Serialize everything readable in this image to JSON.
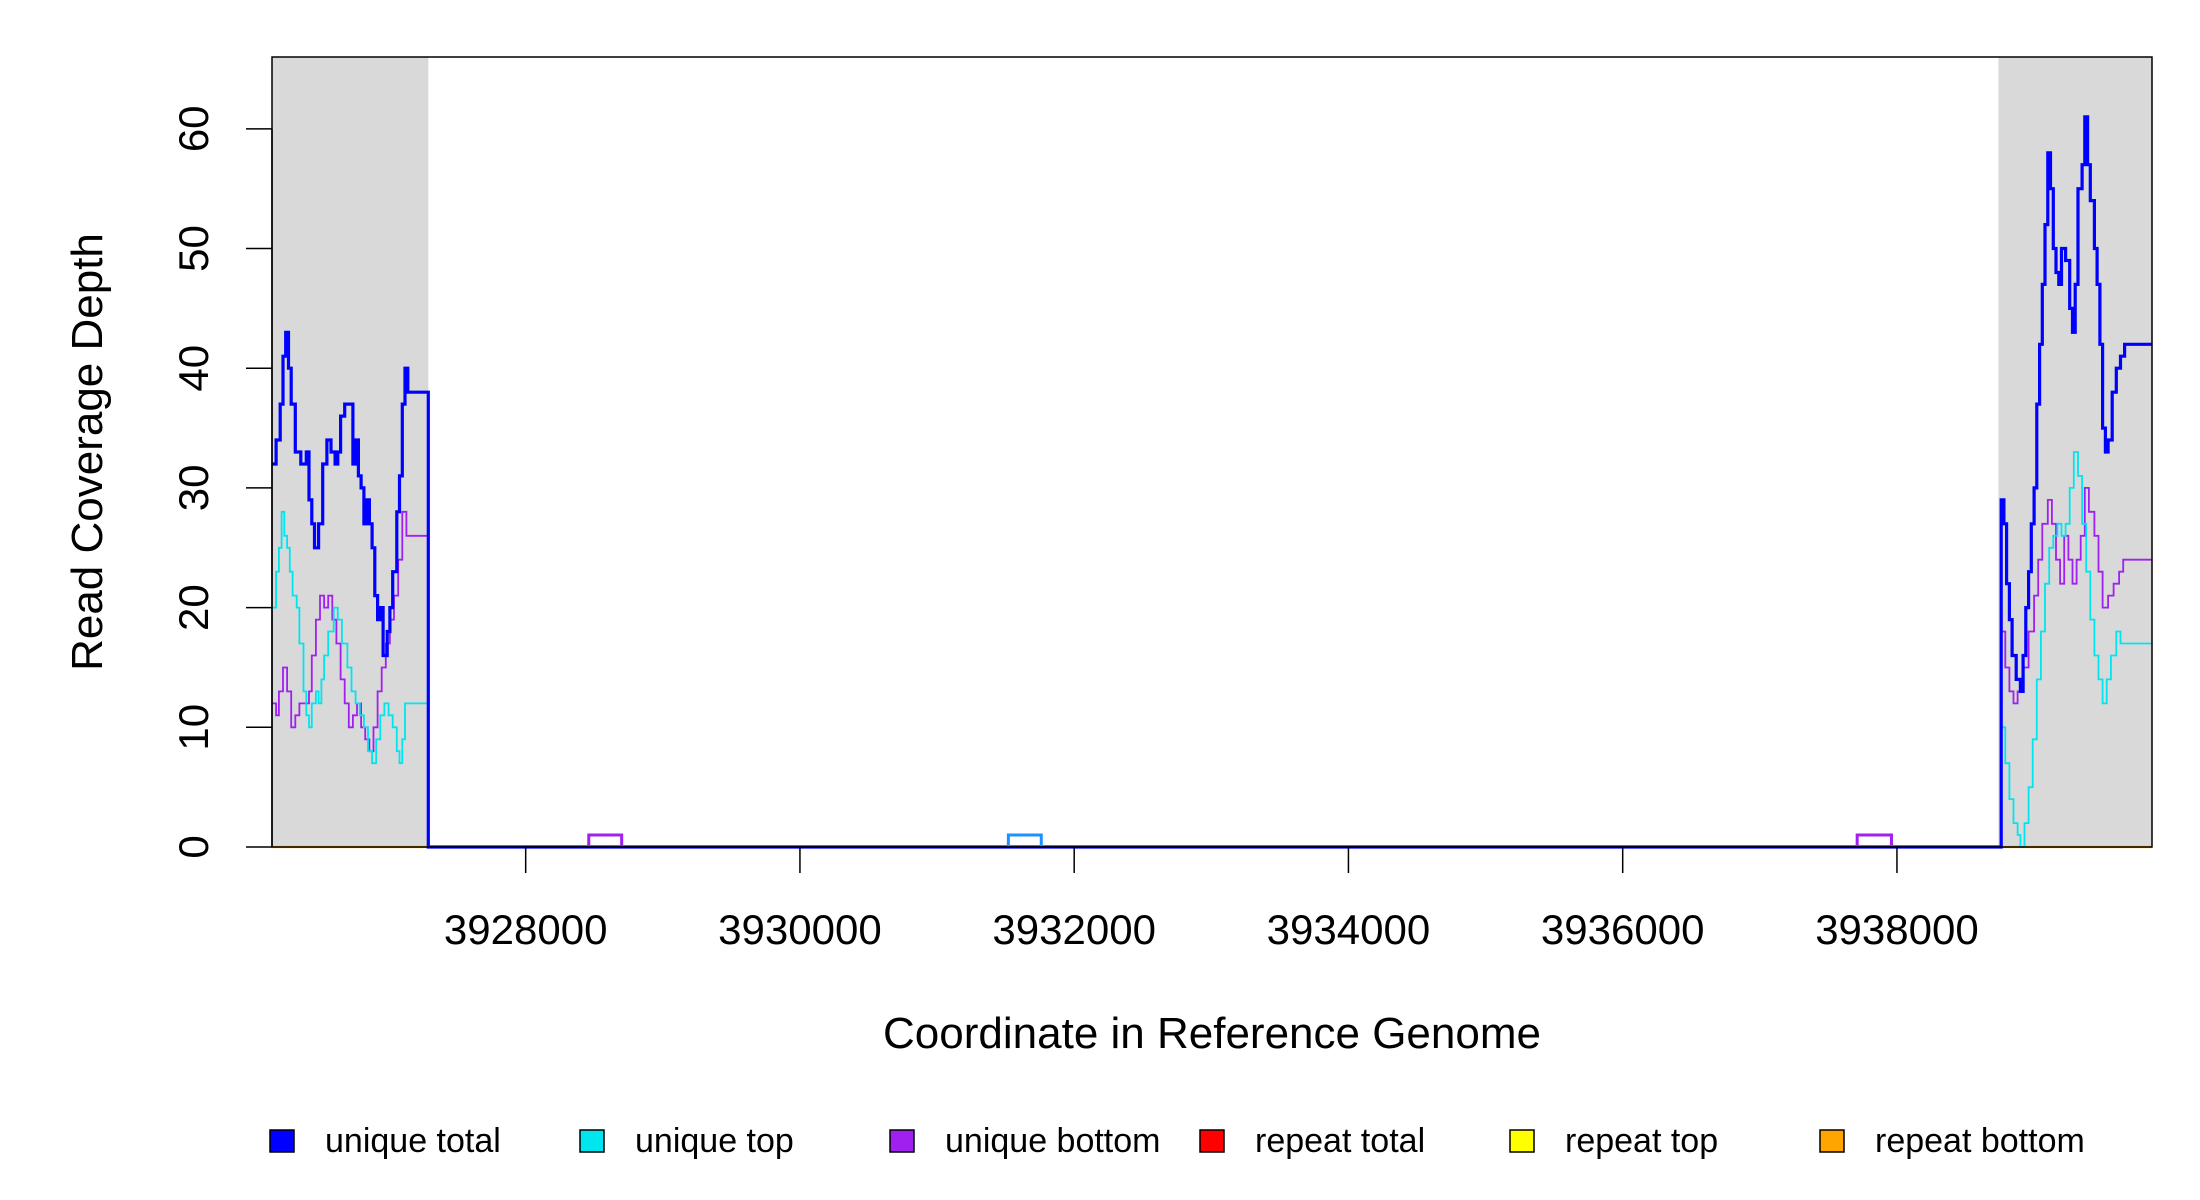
{
  "chart_data": {
    "type": "line",
    "title": "",
    "xlabel": "Coordinate in Reference Genome",
    "ylabel": "Read Coverage Depth",
    "xlim": [
      3926150,
      3939860
    ],
    "ylim": [
      0,
      66
    ],
    "x_ticks": [
      "3928000",
      "3930000",
      "3932000",
      "3934000",
      "3936000",
      "3938000"
    ],
    "y_ticks": [
      "0",
      "10",
      "20",
      "30",
      "40",
      "50",
      "60"
    ],
    "shaded_regions": [
      {
        "x0": 3926150,
        "x1": 3927290
      },
      {
        "x0": 3938740,
        "x1": 3939860
      }
    ],
    "series": [
      {
        "name": "unique total",
        "color": "#0000ff",
        "points": [
          [
            3926150,
            32
          ],
          [
            3926180,
            34
          ],
          [
            3926210,
            37
          ],
          [
            3926230,
            41
          ],
          [
            3926250,
            43
          ],
          [
            3926270,
            40
          ],
          [
            3926290,
            37
          ],
          [
            3926320,
            33
          ],
          [
            3926360,
            32
          ],
          [
            3926400,
            33
          ],
          [
            3926420,
            29
          ],
          [
            3926440,
            27
          ],
          [
            3926460,
            25
          ],
          [
            3926490,
            27
          ],
          [
            3926520,
            32
          ],
          [
            3926550,
            34
          ],
          [
            3926580,
            33
          ],
          [
            3926610,
            32
          ],
          [
            3926630,
            33
          ],
          [
            3926650,
            36
          ],
          [
            3926680,
            37
          ],
          [
            3926720,
            37
          ],
          [
            3926740,
            32
          ],
          [
            3926760,
            34
          ],
          [
            3926780,
            31
          ],
          [
            3926800,
            30
          ],
          [
            3926820,
            27
          ],
          [
            3926840,
            29
          ],
          [
            3926860,
            27
          ],
          [
            3926880,
            25
          ],
          [
            3926900,
            21
          ],
          [
            3926920,
            19
          ],
          [
            3926940,
            20
          ],
          [
            3926960,
            16
          ],
          [
            3926990,
            18
          ],
          [
            3927010,
            20
          ],
          [
            3927030,
            23
          ],
          [
            3927060,
            28
          ],
          [
            3927080,
            31
          ],
          [
            3927100,
            37
          ],
          [
            3927120,
            40
          ],
          [
            3927140,
            38
          ],
          [
            3927290,
            0
          ],
          [
            3938740,
            0
          ],
          [
            3938760,
            29
          ],
          [
            3938780,
            27
          ],
          [
            3938800,
            22
          ],
          [
            3938820,
            19
          ],
          [
            3938840,
            16
          ],
          [
            3938870,
            14
          ],
          [
            3938900,
            13
          ],
          [
            3938920,
            16
          ],
          [
            3938940,
            20
          ],
          [
            3938960,
            23
          ],
          [
            3938980,
            27
          ],
          [
            3939000,
            30
          ],
          [
            3939020,
            37
          ],
          [
            3939040,
            42
          ],
          [
            3939060,
            47
          ],
          [
            3939080,
            52
          ],
          [
            3939100,
            58
          ],
          [
            3939120,
            55
          ],
          [
            3939140,
            50
          ],
          [
            3939160,
            48
          ],
          [
            3939180,
            47
          ],
          [
            3939200,
            50
          ],
          [
            3939230,
            49
          ],
          [
            3939260,
            45
          ],
          [
            3939280,
            43
          ],
          [
            3939300,
            47
          ],
          [
            3939320,
            55
          ],
          [
            3939350,
            57
          ],
          [
            3939370,
            61
          ],
          [
            3939390,
            57
          ],
          [
            3939410,
            54
          ],
          [
            3939440,
            50
          ],
          [
            3939460,
            47
          ],
          [
            3939480,
            42
          ],
          [
            3939500,
            35
          ],
          [
            3939520,
            33
          ],
          [
            3939540,
            34
          ],
          [
            3939570,
            38
          ],
          [
            3939600,
            40
          ],
          [
            3939630,
            41
          ],
          [
            3939660,
            42
          ],
          [
            3939860,
            42
          ]
        ]
      },
      {
        "name": "unique top",
        "color": "#00e5ee",
        "points": [
          [
            3926150,
            20
          ],
          [
            3926180,
            23
          ],
          [
            3926200,
            25
          ],
          [
            3926220,
            28
          ],
          [
            3926240,
            26
          ],
          [
            3926260,
            25
          ],
          [
            3926280,
            23
          ],
          [
            3926300,
            21
          ],
          [
            3926330,
            20
          ],
          [
            3926350,
            17
          ],
          [
            3926380,
            13
          ],
          [
            3926400,
            11
          ],
          [
            3926420,
            10
          ],
          [
            3926440,
            12
          ],
          [
            3926470,
            13
          ],
          [
            3926490,
            12
          ],
          [
            3926510,
            14
          ],
          [
            3926530,
            16
          ],
          [
            3926560,
            18
          ],
          [
            3926600,
            20
          ],
          [
            3926630,
            19
          ],
          [
            3926660,
            17
          ],
          [
            3926700,
            15
          ],
          [
            3926730,
            13
          ],
          [
            3926760,
            12
          ],
          [
            3926790,
            11
          ],
          [
            3926820,
            10
          ],
          [
            3926850,
            8
          ],
          [
            3926880,
            7
          ],
          [
            3926910,
            9
          ],
          [
            3926940,
            11
          ],
          [
            3926970,
            12
          ],
          [
            3927000,
            11
          ],
          [
            3927030,
            10
          ],
          [
            3927060,
            8
          ],
          [
            3927080,
            7
          ],
          [
            3927100,
            9
          ],
          [
            3927120,
            12
          ],
          [
            3927140,
            12
          ],
          [
            3927290,
            0
          ],
          [
            3938740,
            0
          ],
          [
            3938760,
            10
          ],
          [
            3938790,
            7
          ],
          [
            3938820,
            4
          ],
          [
            3938850,
            2
          ],
          [
            3938880,
            1
          ],
          [
            3938900,
            0
          ],
          [
            3938930,
            2
          ],
          [
            3938960,
            5
          ],
          [
            3938990,
            9
          ],
          [
            3939020,
            14
          ],
          [
            3939050,
            18
          ],
          [
            3939080,
            22
          ],
          [
            3939110,
            25
          ],
          [
            3939140,
            26
          ],
          [
            3939170,
            27
          ],
          [
            3939200,
            26
          ],
          [
            3939230,
            27
          ],
          [
            3939260,
            30
          ],
          [
            3939290,
            33
          ],
          [
            3939320,
            31
          ],
          [
            3939350,
            27
          ],
          [
            3939380,
            23
          ],
          [
            3939410,
            19
          ],
          [
            3939440,
            16
          ],
          [
            3939470,
            14
          ],
          [
            3939500,
            12
          ],
          [
            3939530,
            14
          ],
          [
            3939560,
            16
          ],
          [
            3939600,
            18
          ],
          [
            3939630,
            17
          ],
          [
            3939860,
            17
          ]
        ]
      },
      {
        "name": "unique bottom",
        "color": "#a020f0",
        "points": [
          [
            3926150,
            12
          ],
          [
            3926180,
            11
          ],
          [
            3926200,
            13
          ],
          [
            3926230,
            15
          ],
          [
            3926260,
            13
          ],
          [
            3926290,
            10
          ],
          [
            3926320,
            11
          ],
          [
            3926350,
            12
          ],
          [
            3926400,
            12
          ],
          [
            3926420,
            13
          ],
          [
            3926440,
            16
          ],
          [
            3926470,
            19
          ],
          [
            3926500,
            21
          ],
          [
            3926530,
            20
          ],
          [
            3926560,
            21
          ],
          [
            3926590,
            19
          ],
          [
            3926620,
            17
          ],
          [
            3926650,
            14
          ],
          [
            3926680,
            12
          ],
          [
            3926710,
            10
          ],
          [
            3926740,
            11
          ],
          [
            3926770,
            12
          ],
          [
            3926800,
            10
          ],
          [
            3926830,
            9
          ],
          [
            3926860,
            8
          ],
          [
            3926890,
            10
          ],
          [
            3926920,
            13
          ],
          [
            3926950,
            15
          ],
          [
            3926980,
            17
          ],
          [
            3927010,
            19
          ],
          [
            3927040,
            21
          ],
          [
            3927070,
            24
          ],
          [
            3927100,
            28
          ],
          [
            3927130,
            26
          ],
          [
            3927290,
            0
          ],
          [
            3938740,
            0
          ],
          [
            3938760,
            18
          ],
          [
            3938790,
            15
          ],
          [
            3938820,
            13
          ],
          [
            3938850,
            12
          ],
          [
            3938880,
            13
          ],
          [
            3938920,
            15
          ],
          [
            3938960,
            18
          ],
          [
            3939000,
            21
          ],
          [
            3939030,
            24
          ],
          [
            3939060,
            27
          ],
          [
            3939100,
            29
          ],
          [
            3939130,
            27
          ],
          [
            3939160,
            24
          ],
          [
            3939190,
            22
          ],
          [
            3939220,
            26
          ],
          [
            3939250,
            24
          ],
          [
            3939280,
            22
          ],
          [
            3939310,
            24
          ],
          [
            3939340,
            26
          ],
          [
            3939370,
            30
          ],
          [
            3939400,
            28
          ],
          [
            3939440,
            26
          ],
          [
            3939470,
            23
          ],
          [
            3939500,
            20
          ],
          [
            3939540,
            21
          ],
          [
            3939580,
            22
          ],
          [
            3939620,
            23
          ],
          [
            3939650,
            24
          ],
          [
            3939860,
            24
          ]
        ]
      },
      {
        "name": "repeat total",
        "color": "#ff0000",
        "points": []
      },
      {
        "name": "repeat top",
        "color": "#ffff00",
        "points": []
      },
      {
        "name": "repeat bottom",
        "color": "#ffa500",
        "points": [
          [
            3926150,
            0
          ],
          [
            3939860,
            0
          ]
        ]
      }
    ],
    "minor_bumps": [
      {
        "x0": 3928460,
        "x1": 3928700,
        "y": 1,
        "color": "#a020f0"
      },
      {
        "x0": 3931520,
        "x1": 3931760,
        "y": 1,
        "color": "#1e90ff"
      },
      {
        "x0": 3937710,
        "x1": 3937960,
        "y": 1,
        "color": "#a020f0"
      }
    ],
    "legend": {
      "placement": "bottom",
      "items": [
        {
          "label": "unique total",
          "color": "#0000ff"
        },
        {
          "label": "unique top",
          "color": "#00e5ee"
        },
        {
          "label": "unique bottom",
          "color": "#a020f0"
        },
        {
          "label": "repeat total",
          "color": "#ff0000"
        },
        {
          "label": "repeat top",
          "color": "#ffff00"
        },
        {
          "label": "repeat bottom",
          "color": "#ffa500"
        }
      ]
    }
  }
}
